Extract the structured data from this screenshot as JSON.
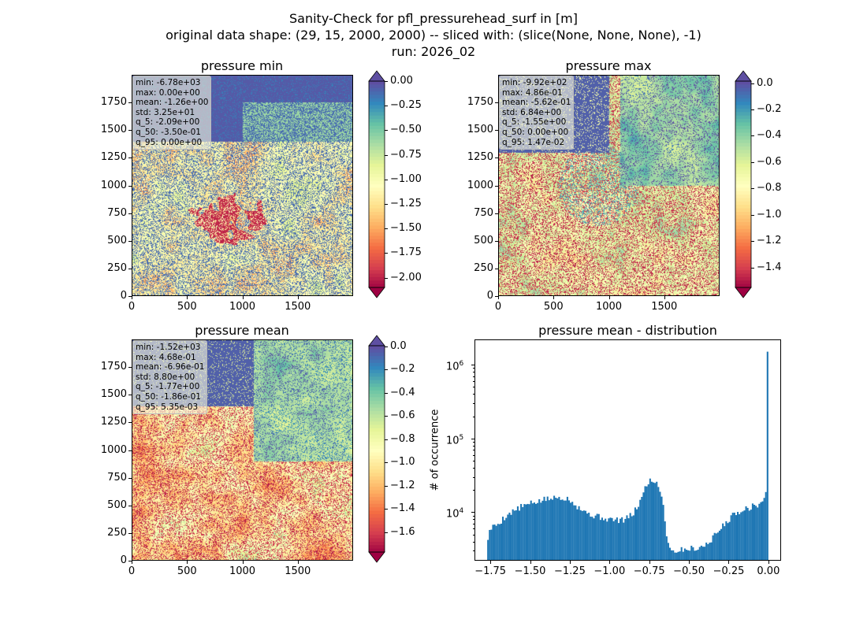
{
  "figure": {
    "title_lines": [
      "Sanity-Check for pfl_pressurehead_surf in [m]",
      "original data shape: (29, 15, 2000, 2000) -- sliced with: (slice(None, None, None), -1)",
      "run: 2026_02"
    ]
  },
  "axes_common": {
    "map_x_ticks": [
      "0",
      "500",
      "1000",
      "1500"
    ],
    "map_y_ticks": [
      "0",
      "250",
      "500",
      "750",
      "1000",
      "1250",
      "1500",
      "1750"
    ]
  },
  "panels": [
    {
      "title": "pressure min",
      "stats": [
        "min: -6.78e+03",
        "max: 0.00e+00",
        "mean: -1.26e+00",
        "std: 3.25e+01",
        "q_5: -2.09e+00",
        "q_50: -3.50e-01",
        "q_95: 0.00e+00"
      ],
      "colorbar": {
        "ticks": [
          "0.00",
          "−0.25",
          "−0.50",
          "−0.75",
          "−1.00",
          "−1.25",
          "−1.50",
          "−1.75",
          "−2.00"
        ],
        "extend": "both",
        "vmin": -2.1,
        "vmax": 0.0,
        "cmap": "Spectral"
      }
    },
    {
      "title": "pressure max",
      "stats": [
        "min: -9.92e+02",
        "max: 4.86e-01",
        "mean: -5.62e-01",
        "std: 6.84e+00",
        "q_5: -1.55e+00",
        "q_50: 0.00e+00",
        "q_95: 1.47e-02"
      ],
      "colorbar": {
        "ticks": [
          "0.0",
          "−0.2",
          "−0.4",
          "−0.6",
          "−0.8",
          "−1.0",
          "−1.2",
          "−1.4"
        ],
        "extend": "both",
        "vmin": -1.55,
        "vmax": 0.015,
        "cmap": "Spectral"
      }
    },
    {
      "title": "pressure mean",
      "stats": [
        "min: -1.52e+03",
        "max: 4.68e-01",
        "mean: -6.96e-01",
        "std: 8.80e+00",
        "q_5: -1.77e+00",
        "q_50: -1.86e-01",
        "q_95: 5.35e-03"
      ],
      "colorbar": {
        "ticks": [
          "0.0",
          "−0.2",
          "−0.4",
          "−0.6",
          "−0.8",
          "−1.0",
          "−1.2",
          "−1.4",
          "−1.6"
        ],
        "extend": "both",
        "vmin": -1.77,
        "vmax": 0.005,
        "cmap": "Spectral"
      }
    }
  ],
  "histogram": {
    "title": "pressure mean - distribution",
    "ylabel": "# of occurrence",
    "x_ticks": [
      "−1.75",
      "−1.50",
      "−1.25",
      "−1.00",
      "−0.75",
      "−0.50",
      "−0.25",
      "0.00"
    ],
    "y_ticks": [
      "10",
      "10",
      "10"
    ],
    "y_tick_exponents": [
      "4",
      "5",
      "6"
    ]
  },
  "chart_data": [
    {
      "type": "heatmap",
      "title": "pressure min",
      "xlim": [
        0,
        2000
      ],
      "ylim": [
        0,
        2000
      ],
      "colorbar_range": [
        -2.1,
        0.0
      ],
      "colormap": "Spectral",
      "extend": "both"
    },
    {
      "type": "heatmap",
      "title": "pressure max",
      "xlim": [
        0,
        2000
      ],
      "ylim": [
        0,
        2000
      ],
      "colorbar_range": [
        -1.55,
        0.015
      ],
      "colormap": "Spectral",
      "extend": "both"
    },
    {
      "type": "heatmap",
      "title": "pressure mean",
      "xlim": [
        0,
        2000
      ],
      "ylim": [
        0,
        2000
      ],
      "colorbar_range": [
        -1.77,
        0.005
      ],
      "colormap": "Spectral",
      "extend": "both"
    },
    {
      "type": "bar",
      "subtype": "histogram",
      "title": "pressure mean - distribution",
      "xlabel": "",
      "ylabel": "# of occurrence",
      "yscale": "log",
      "xlim": [
        -1.85,
        0.08
      ],
      "ylim": [
        2200,
        2200000
      ],
      "color": "#1f77b4",
      "x": [
        -1.77,
        -1.75,
        -1.7,
        -1.65,
        -1.6,
        -1.55,
        -1.5,
        -1.45,
        -1.4,
        -1.35,
        -1.3,
        -1.25,
        -1.2,
        -1.15,
        -1.1,
        -1.05,
        -1.0,
        -0.95,
        -0.9,
        -0.85,
        -0.8,
        -0.77,
        -0.75,
        -0.72,
        -0.7,
        -0.68,
        -0.66,
        -0.64,
        -0.62,
        -0.6,
        -0.58,
        -0.55,
        -0.5,
        -0.45,
        -0.4,
        -0.35,
        -0.3,
        -0.25,
        -0.2,
        -0.15,
        -0.1,
        -0.05,
        -0.02,
        -0.01,
        0.0
      ],
      "y": [
        4000,
        6000,
        7000,
        9000,
        10500,
        12000,
        13000,
        14000,
        15000,
        15500,
        16000,
        15000,
        12000,
        10000,
        9000,
        8500,
        8000,
        7800,
        8000,
        9500,
        15000,
        23000,
        27000,
        26000,
        25000,
        20000,
        12000,
        5000,
        3200,
        3000,
        3000,
        3100,
        3200,
        3300,
        3500,
        4500,
        6000,
        8000,
        10000,
        11000,
        12000,
        13000,
        16000,
        24000,
        1500000
      ]
    }
  ]
}
